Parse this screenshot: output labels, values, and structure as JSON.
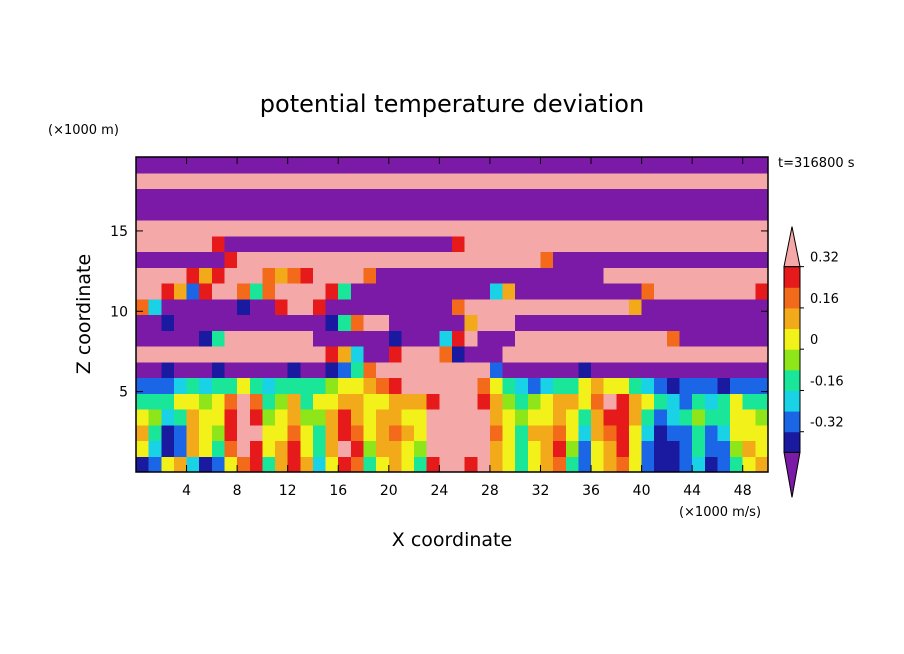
{
  "chart_data": {
    "type": "heatmap",
    "title": "potential temperature deviation",
    "xlabel": "X coordinate",
    "ylabel": "Z coordinate",
    "x_unit": "(×1000 m/s)",
    "y_unit": "(×1000 m)",
    "time_label": "t=316800 s",
    "xlim": [
      0,
      50
    ],
    "ylim": [
      0,
      19.6
    ],
    "x_ticks": [
      4,
      8,
      12,
      16,
      20,
      24,
      28,
      32,
      36,
      40,
      44,
      48
    ],
    "y_ticks": [
      5,
      10,
      15
    ],
    "colorbar": {
      "levels": [
        -0.4,
        -0.32,
        -0.24,
        -0.16,
        -0.08,
        0,
        0.08,
        0.16,
        0.24,
        0.32,
        0.4
      ],
      "tick_labels": [
        "-0.32",
        "-0.16",
        "0",
        "0.16",
        "0.32"
      ],
      "tick_values": [
        -0.32,
        -0.16,
        0,
        0.16,
        0.32
      ],
      "colors": [
        "#7a1aa6",
        "#1a1aa0",
        "#1a66e6",
        "#1ad2e6",
        "#1ae69a",
        "#8ee61a",
        "#f2f21a",
        "#f2aa1a",
        "#f26a1a",
        "#e61a1a",
        "#f4a8a8"
      ],
      "extend": "both"
    },
    "field": {
      "nx": 50,
      "nz": 20,
      "description_rows_bottom_to_top": [
        "-0.33,-0.30,0.05,0.10,-0.20,-0.40,-0.32,0.05,0.20,0.25,-0.10,0.15,0.30,0.10,-0.20,0.05,0.30,0.20,-0.10,0.05,0.10,0.00,-0.10,0.30,0.45,0.45,0.30,0.40,0.10,0.05,-0.10,0.00,0.10,0.20,-0.10,-0.30,0.00,0.10,0.20,0.05,-0.30,-0.40,-0.36,-0.32,-0.20,-0.36,-0.30,-0.10,0.05,0.10",
        "0.05,-0.20,-0.38,-0.30,0.10,0.00,-0.10,0.20,0.35,0.30,0.05,0.10,0.25,0.05,-0.15,0.10,0.35,0.25,-0.05,0.10,0.15,0.05,-0.05,0.35,0.45,0.40,0.35,0.45,0.15,0.00,-0.15,0.05,0.15,0.25,-0.05,-0.25,0.05,0.15,0.25,0.00,-0.25,-0.38,-0.36,-0.30,-0.15,-0.32,-0.25,-0.05,0.10,0.05",
        "0.10,-0.10,-0.35,-0.25,0.15,0.05,-0.05,0.25,0.40,0.35,0.00,0.05,0.20,0.00,-0.10,0.15,0.30,0.20,0.00,0.15,0.20,0.10,0.00,0.40,0.45,0.35,0.40,0.45,0.20,0.05,-0.10,0.10,0.10,0.20,0.00,-0.20,0.10,0.20,0.30,0.05,-0.20,-0.34,-0.30,-0.25,-0.10,-0.25,-0.20,0.00,0.05,0.00",
        "0.00,-0.05,-0.20,-0.10,0.10,0.00,0.00,0.30,0.45,0.30,-0.05,0.00,0.15,-0.05,-0.05,0.10,0.25,0.15,0.05,0.10,0.15,0.05,0.05,0.40,0.45,0.40,0.45,0.40,0.15,0.00,-0.05,0.05,0.05,0.15,0.05,-0.10,0.15,0.30,0.25,0.10,-0.10,-0.25,-0.20,-0.15,-0.05,-0.15,-0.10,0.05,0.00,-0.05",
        "-0.10,-0.15,-0.10,0.00,0.05,-0.05,0.05,0.20,0.35,0.20,-0.10,-0.05,0.10,-0.10,0.00,0.05,0.15,0.10,0.00,0.05,0.10,0.10,0.15,0.30,0.40,0.45,0.45,0.30,0.10,-0.05,-0.10,-0.05,0.00,0.10,0.10,0.05,0.20,0.35,0.30,0.15,0.00,-0.15,-0.20,-0.25,-0.15,-0.20,-0.15,0.00,-0.10,-0.15",
        "-0.25,-0.30,-0.25,-0.20,-0.15,-0.20,-0.15,-0.10,0.00,-0.10,-0.20,-0.15,-0.10,-0.15,-0.10,-0.05,0.00,0.05,0.10,0.20,0.30,0.40,0.45,0.45,0.45,0.45,0.40,0.20,0.05,-0.10,-0.20,-0.25,-0.20,-0.15,-0.10,0.00,0.10,0.05,0.00,-0.10,-0.20,-0.30,-0.35,-0.30,-0.25,-0.30,-0.35,-0.30,-0.25,-0.30",
        "-0.45,-0.45,-0.40,-0.45,-0.45,-0.45,-0.40,-0.45,-0.45,-0.45,-0.45,-0.45,-0.40,-0.45,-0.45,-0.40,-0.30,-0.10,0.20,0.45,0.45,0.45,0.45,0.45,0.45,0.45,0.45,0.40,-0.30,-0.45,-0.45,-0.45,-0.45,-0.45,-0.45,-0.40,-0.45,-0.45,-0.45,-0.45,-0.45,-0.45,-0.45,-0.45,-0.45,-0.45,-0.45,-0.45,-0.45,-0.45",
        "0.45,0.45,0.45,0.40,0.45,0.45,0.45,0.45,0.45,0.45,0.45,0.45,0.45,0.45,0.40,0.30,0.10,-0.20,-0.45,-0.45,0.30,0.45,0.45,0.45,0.20,-0.40,-0.45,-0.45,-0.45,0.45,0.45,0.45,0.45,0.45,0.45,0.45,0.45,0.45,0.45,0.45,0.45,0.45,0.45,0.45,0.45,0.45,0.45,0.45,0.45,0.40",
        "-0.45,-0.45,-0.45,-0.45,-0.45,-0.40,-0.10,0.45,0.45,0.45,0.45,0.45,0.45,0.45,-0.45,-0.45,-0.45,-0.45,-0.45,-0.45,-0.40,-0.45,-0.45,-0.45,-0.20,0.30,0.45,-0.45,-0.45,-0.45,0.45,0.45,0.45,0.45,0.45,0.45,0.45,0.45,0.45,0.45,0.45,0.45,0.20,-0.45,-0.45,-0.45,-0.45,-0.45,-0.45,-0.45",
        "-0.45,-0.45,-0.40,-0.45,-0.45,-0.45,-0.45,-0.45,-0.45,-0.45,-0.45,-0.45,-0.45,-0.45,-0.45,-0.40,-0.10,0.20,0.45,0.45,-0.45,-0.45,-0.45,-0.45,-0.45,-0.45,0.10,0.45,0.45,0.45,-0.45,-0.45,-0.45,-0.45,-0.45,-0.45,-0.45,-0.45,-0.45,-0.45,-0.45,-0.45,-0.45,-0.45,-0.45,-0.45,-0.45,-0.45,-0.45,-0.45",
        "0.20,-0.20,-0.45,-0.45,-0.45,-0.45,-0.45,-0.45,-0.40,-0.45,-0.45,0.30,0.45,0.45,0.30,-0.45,-0.45,-0.45,-0.45,-0.45,-0.45,-0.45,-0.45,-0.45,-0.45,0.20,0.45,0.45,0.45,0.45,0.45,0.45,0.45,0.45,0.45,0.45,0.45,0.45,0.40,0.10,-0.45,-0.45,-0.45,-0.45,-0.45,-0.45,-0.45,-0.45,-0.45,-0.45",
        "0.45,0.45,0.30,0.10,-0.30,0.30,0.45,0.45,0.20,-0.10,0.20,0.45,0.45,0.45,0.45,0.30,-0.10,-0.45,-0.45,-0.45,-0.45,-0.45,-0.45,-0.45,-0.45,-0.45,-0.45,-0.45,-0.20,0.10,-0.45,-0.45,-0.45,-0.45,-0.45,-0.45,-0.45,-0.45,-0.45,-0.45,0.20,0.45,0.45,0.45,0.45,0.45,0.45,0.45,0.45,0.30",
        "0.45,0.45,0.45,0.45,0.30,0.10,0.30,0.45,0.45,0.40,0.20,0.10,0.20,0.30,0.40,0.45,0.45,0.45,0.20,-0.45,-0.45,-0.45,-0.45,-0.45,-0.45,-0.45,-0.45,-0.45,-0.45,-0.45,-0.45,-0.45,-0.45,-0.45,-0.45,-0.45,-0.45,0.45,0.45,0.45,0.45,0.45,0.45,0.45,0.45,0.45,0.45,0.45,0.45,0.45",
        "-0.45,-0.45,-0.45,-0.45,-0.45,-0.45,-0.45,0.30,0.45,0.45,0.45,0.45,0.45,0.45,0.45,0.45,0.45,0.45,0.45,0.45,0.45,0.45,0.45,0.45,0.45,0.45,0.45,0.45,0.45,0.45,0.45,0.40,0.20,-0.45,-0.45,-0.45,-0.45,-0.45,-0.45,-0.45,-0.45,-0.45,-0.45,-0.45,-0.45,-0.45,-0.45,-0.45,-0.45,-0.45",
        "0.45,0.45,0.45,0.45,0.45,0.45,0.30,-0.45,-0.45,-0.45,-0.45,-0.45,-0.45,-0.45,-0.45,-0.45,-0.45,-0.45,-0.45,-0.45,-0.45,-0.45,-0.45,-0.45,-0.45,0.30,0.45,0.45,0.45,0.45,0.45,0.45,0.45,0.45,0.45,0.45,0.45,0.45,0.45,0.45,0.45,0.45,0.45,0.45,0.45,0.45,0.45,0.45,0.45,0.45",
        "0.45,0.45,0.45,0.45,0.45,0.45,0.45,0.45,0.45,0.45,0.45,0.45,0.45,0.45,0.45,0.45,0.45,0.45,0.45,0.45,0.45,0.45,0.45,0.45,0.45,0.45,0.45,0.45,0.45,0.45,0.45,0.45,0.45,0.45,0.45,0.45,0.45,0.45,0.45,0.45,0.45,0.45,0.45,0.45,0.45,0.45,0.45,0.45,0.45,0.45",
        "-0.45,-0.45,-0.45,-0.45,-0.45,-0.45,-0.45,-0.45,-0.45,-0.45,-0.45,-0.45,-0.45,-0.45,-0.45,-0.45,-0.45,-0.45,-0.45,-0.45,-0.45,-0.45,-0.45,-0.45,-0.45,-0.45,-0.45,-0.45,-0.45,-0.45,-0.45,-0.45,-0.45,-0.45,-0.45,-0.45,-0.45,-0.45,-0.45,-0.45,-0.45,-0.45,-0.45,-0.45,-0.45,-0.45,-0.45,-0.45,-0.45,-0.45",
        "-0.45,-0.45,-0.45,-0.45,-0.45,-0.45,-0.45,-0.45,-0.45,-0.45,-0.45,-0.45,-0.45,-0.45,-0.45,-0.45,-0.45,-0.45,-0.45,-0.45,-0.45,-0.45,-0.45,-0.45,-0.45,-0.45,-0.45,-0.45,-0.45,-0.45,-0.45,-0.45,-0.45,-0.45,-0.45,-0.45,-0.45,-0.45,-0.45,-0.45,-0.45,-0.45,-0.45,-0.45,-0.45,-0.45,-0.45,-0.45,-0.45,-0.45",
        "0.45,0.45,0.45,0.45,0.45,0.45,0.45,0.45,0.45,0.45,0.45,0.45,0.45,0.45,0.45,0.45,0.45,0.45,0.45,0.45,0.45,0.45,0.45,0.45,0.45,0.45,0.45,0.45,0.45,0.45,0.45,0.45,0.45,0.45,0.45,0.45,0.45,0.45,0.45,0.45,0.45,0.45,0.45,0.45,0.45,0.45,0.45,0.45,0.45,0.45",
        "-0.45,-0.45,-0.45,-0.45,-0.45,-0.45,-0.45,-0.45,-0.45,-0.45,-0.45,-0.45,-0.45,-0.45,-0.45,-0.45,-0.45,-0.45,-0.45,-0.45,-0.45,-0.45,-0.45,-0.45,-0.45,-0.45,-0.45,-0.45,-0.45,-0.45,-0.45,-0.45,-0.45,-0.45,-0.45,-0.45,-0.45,-0.45,-0.45,-0.45,-0.45,-0.45,-0.45,-0.45,-0.45,-0.45,-0.45,-0.45,-0.45,-0.45"
      ]
    }
  }
}
